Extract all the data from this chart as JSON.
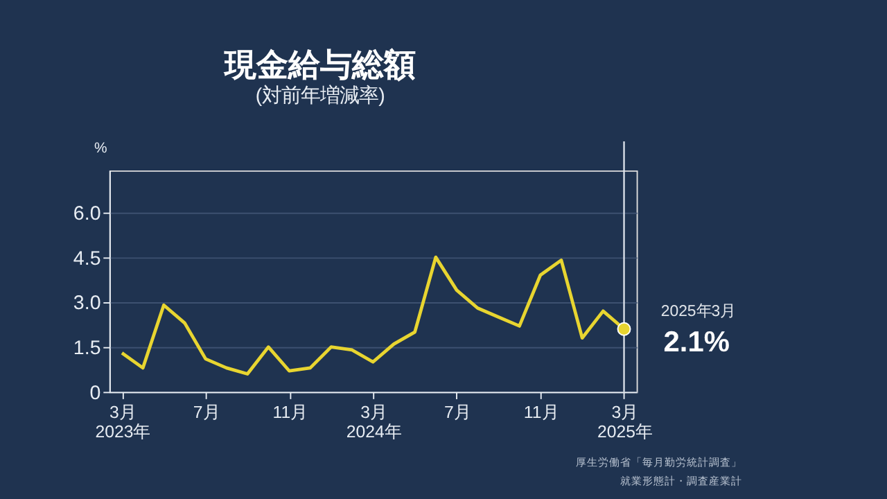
{
  "chart_data": {
    "type": "line",
    "title": "現金給与総額",
    "subtitle": "(対前年増減率)",
    "ylabel": "%",
    "categories": [
      "3月\n2023年",
      null,
      null,
      null,
      "7月",
      null,
      null,
      null,
      "11月",
      null,
      null,
      null,
      "3月\n2024年",
      null,
      null,
      null,
      "7月",
      null,
      null,
      null,
      "11月",
      null,
      null,
      null,
      "3月\n2025年"
    ],
    "series": [
      {
        "color": "#e8d530",
        "values": [
          1.3,
          0.8,
          2.9,
          2.3,
          1.1,
          0.8,
          0.6,
          1.5,
          0.7,
          0.8,
          1.5,
          1.4,
          1.0,
          1.6,
          2.0,
          4.5,
          3.4,
          2.8,
          2.5,
          2.2,
          3.9,
          4.4,
          1.8,
          2.7,
          2.1
        ]
      }
    ],
    "ylim": [
      0,
      7.4
    ],
    "yticks": [
      0,
      1.5,
      {
        "value": 3,
        "label": "3.0"
      },
      4.5,
      {
        "value": 6,
        "label": "6.0"
      }
    ],
    "grid": "y",
    "marker": "none",
    "line_style": "solid",
    "ref_lines": [
      {
        "axis": "x",
        "value": "3月\n2025年",
        "label": null,
        "color": "#e0e6ee"
      }
    ],
    "annotations": [
      {
        "text": "2025年3月",
        "x": "3月\n2025年",
        "y": 2.1
      },
      {
        "text": "2.1%",
        "x": "3月\n2025年",
        "y": 2.1
      },
      "厚生労働省「毎月勤労統計調査」",
      "就業形態計・調査産業計"
    ]
  }
}
